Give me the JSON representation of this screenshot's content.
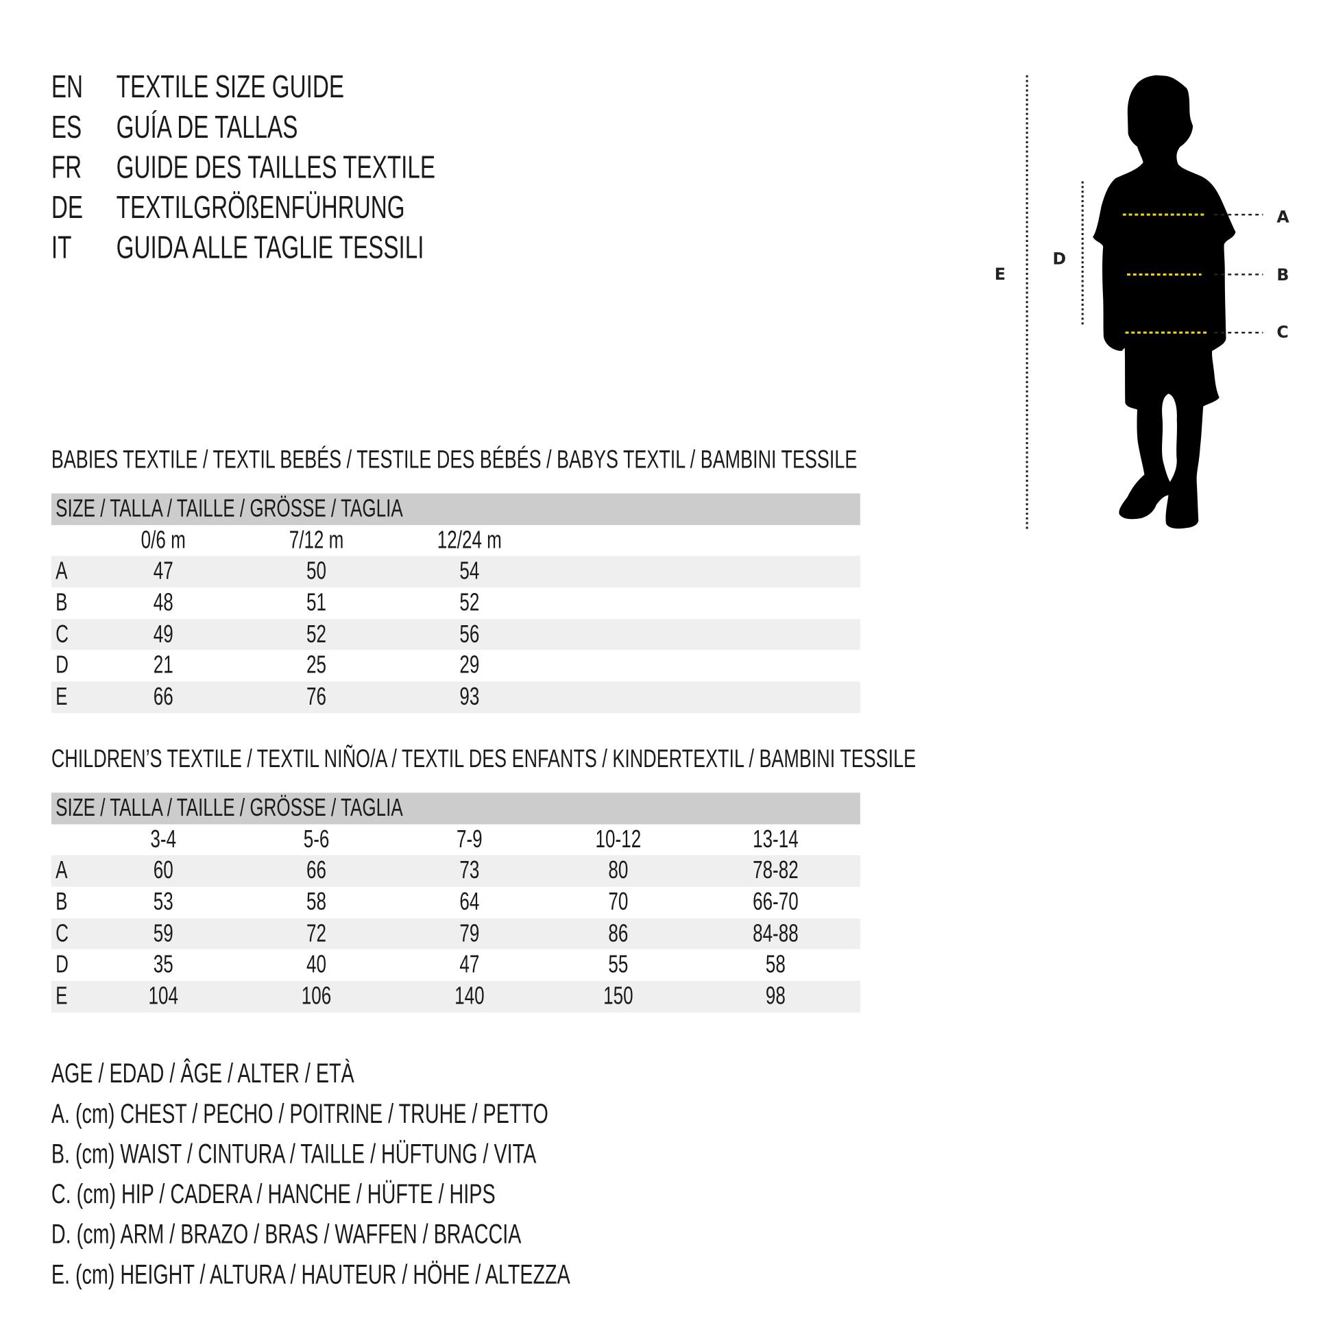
{
  "titles": [
    {
      "code": "EN",
      "text": "TEXTILE SIZE GUIDE"
    },
    {
      "code": "ES",
      "text": "GUÍA DE TALLAS"
    },
    {
      "code": "FR",
      "text": "GUIDE DES TAILLES TEXTILE"
    },
    {
      "code": "DE",
      "text": "TEXTILGRÖßENFÜHRUNG"
    },
    {
      "code": "IT",
      "text": "GUIDA ALLE TAGLIE TESSILI"
    }
  ],
  "babies": {
    "heading": "BABIES TEXTILE / TEXTIL BEBÉS / TESTILE DES BÉBÉS / BABYS TEXTIL / BAMBINI TESSILE",
    "size_header": "SIZE / TALLA / TAILLE / GRÖSSE / TAGLIA",
    "columns": [
      "0/6 m",
      "7/12 m",
      "12/24 m"
    ],
    "rows": [
      {
        "label": "A",
        "values": [
          "47",
          "50",
          "54"
        ]
      },
      {
        "label": "B",
        "values": [
          "48",
          "51",
          "52"
        ]
      },
      {
        "label": "C",
        "values": [
          "49",
          "52",
          "56"
        ]
      },
      {
        "label": "D",
        "values": [
          "21",
          "25",
          "29"
        ]
      },
      {
        "label": "E",
        "values": [
          "66",
          "76",
          "93"
        ]
      }
    ]
  },
  "children": {
    "heading": "CHILDREN’S TEXTILE / TEXTIL NIÑO/A / TEXTIL DES ENFANTS / KINDERTEXTIL / BAMBINI TESSILE",
    "size_header": "SIZE / TALLA / TAILLE / GRÖSSE / TAGLIA",
    "columns": [
      "3-4",
      "5-6",
      "7-9",
      "10-12",
      "13-14"
    ],
    "rows": [
      {
        "label": "A",
        "values": [
          "60",
          "66",
          "73",
          "80",
          "78-82"
        ]
      },
      {
        "label": "B",
        "values": [
          "53",
          "58",
          "64",
          "70",
          "66-70"
        ]
      },
      {
        "label": "C",
        "values": [
          "59",
          "72",
          "79",
          "86",
          "84-88"
        ]
      },
      {
        "label": "D",
        "values": [
          "35",
          "40",
          "47",
          "55",
          "58"
        ]
      },
      {
        "label": "E",
        "values": [
          "104",
          "106",
          "140",
          "150",
          "98"
        ]
      }
    ]
  },
  "legend": {
    "age": "AGE / EDAD / ÂGE / ALTER / ETÀ",
    "items": [
      "A. (cm) CHEST / PECHO / POITRINE / TRUHE / PETTO",
      "B. (cm) WAIST / CINTURA / TAILLE / HÜFTUNG / VITA",
      "C. (cm) HIP / CADERA / HANCHE / HÜFTE / HIPS",
      "D. (cm) ARM / BRAZO / BRAS / WAFFEN / BRACCIA",
      "E. (cm) HEIGHT / ALTURA / HAUTEUR / HÖHE / ALTEZZA"
    ]
  },
  "figure": {
    "labels": {
      "A": "A",
      "B": "B",
      "C": "C",
      "D": "D",
      "E": "E"
    },
    "colors": {
      "silhouette": "#000000",
      "measure_line": "#e8d41a",
      "guide_line": "#222222",
      "header_band": "#cccccc",
      "row_band": "#efefef"
    }
  }
}
